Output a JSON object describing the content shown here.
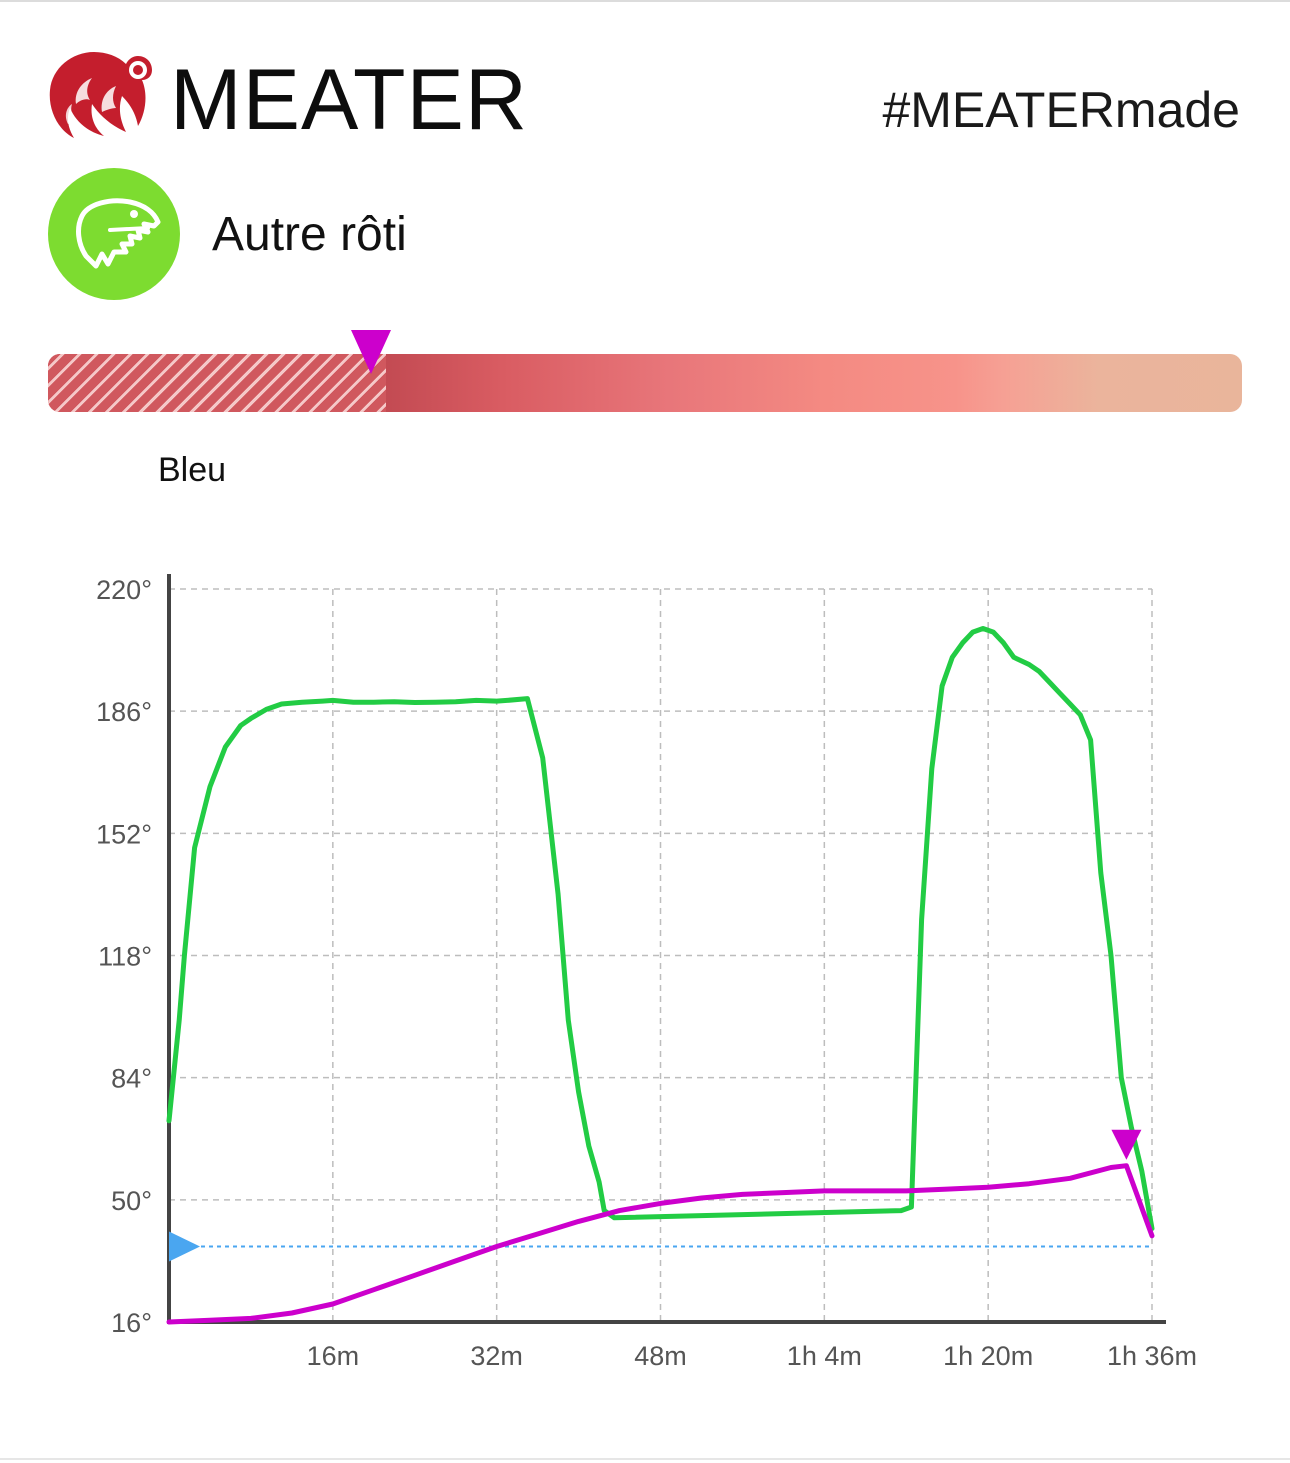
{
  "header": {
    "brand": "MEATER",
    "hashtag": "#MEATERmade",
    "logo_icon": "meater-flame-logo-icon",
    "brand_color": "#c41e2d"
  },
  "cook": {
    "meat_name": "Autre rôti",
    "meat_icon": "dinosaur-icon",
    "meat_icon_color": "#7ddc30"
  },
  "doneness": {
    "label": "Bleu",
    "marker_color": "#cc00cc",
    "target_fraction": 0.27
  },
  "chart_data": {
    "type": "line",
    "xlabel": "",
    "ylabel": "",
    "xlim": [
      0,
      96
    ],
    "ylim": [
      16,
      220
    ],
    "grid": true,
    "y_ticks": [
      16,
      50,
      84,
      118,
      152,
      186,
      220
    ],
    "y_tick_labels": [
      "16°",
      "50°",
      "84°",
      "118°",
      "152°",
      "186°",
      "220°"
    ],
    "x_ticks": [
      16,
      32,
      48,
      64,
      80,
      96
    ],
    "x_tick_labels": [
      "16m",
      "32m",
      "48m",
      "1h 4m",
      "1h 20m",
      "1h 36m"
    ],
    "target_line": {
      "value": 37,
      "color": "#4aa6f0"
    },
    "series": [
      {
        "color": "#22cc44",
        "x": [
          0,
          1,
          1.5,
          2.5,
          4,
          5.5,
          7,
          8,
          9.5,
          11,
          13,
          15,
          16,
          18,
          20,
          22,
          24,
          26,
          28,
          30,
          32,
          33,
          35,
          36.5,
          38,
          39,
          40,
          41,
          42,
          42.5,
          43.5,
          71.5,
          72.5,
          73.5,
          74.5,
          75.5,
          76.5,
          77.5,
          78.5,
          79.5,
          80.5,
          81.5,
          82.5,
          84,
          85,
          86,
          87,
          88,
          89,
          90,
          91,
          92,
          93,
          94,
          95,
          96
        ],
        "y": [
          72,
          100,
          118,
          148,
          165,
          176,
          182,
          184,
          186.5,
          188,
          188.5,
          188.8,
          189,
          188.5,
          188.5,
          188.6,
          188.4,
          188.5,
          188.6,
          189,
          188.8,
          189,
          189.5,
          173,
          135,
          100,
          80,
          65,
          55,
          47,
          45,
          47,
          48,
          128,
          170,
          193,
          201,
          205,
          208,
          209,
          208,
          205,
          201,
          199,
          197,
          194,
          191,
          188,
          185,
          178,
          141,
          118,
          84,
          70,
          58,
          42
        ]
      },
      {
        "color": "#cc00cc",
        "x": [
          0,
          4,
          8,
          12,
          16,
          20,
          24,
          28,
          32,
          36,
          40,
          44,
          48,
          52,
          56,
          60,
          64,
          68,
          72,
          76,
          80,
          84,
          88,
          92,
          93.5,
          96
        ],
        "y": [
          16,
          16.5,
          17,
          18.5,
          21,
          25,
          29,
          33,
          37,
          40.5,
          44,
          47,
          49,
          50.5,
          51.5,
          52,
          52.5,
          52.5,
          52.5,
          53,
          53.5,
          54.5,
          56,
          59,
          59.5,
          40
        ]
      }
    ],
    "end_marker": {
      "x": 93.5,
      "y": 59.5,
      "color": "#cc00cc"
    },
    "target_arrow_color": "#4aa6f0"
  }
}
